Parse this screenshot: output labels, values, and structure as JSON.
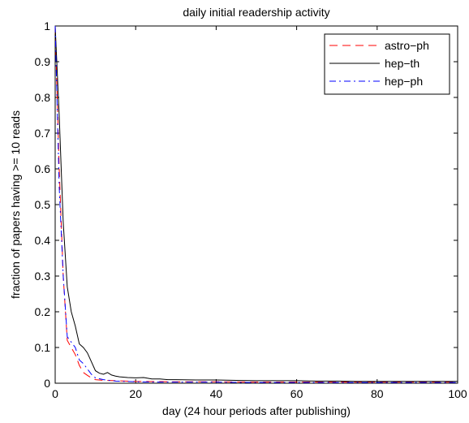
{
  "chart_data": {
    "type": "line",
    "title": "daily initial readership activity",
    "xlabel": "day (24 hour periods after publishing)",
    "ylabel": "fraction of papers having >= 10 reads",
    "xlim": [
      0,
      100
    ],
    "ylim": [
      0,
      1
    ],
    "x_ticks": [
      "0",
      "20",
      "40",
      "60",
      "80",
      "100"
    ],
    "y_ticks": [
      "0",
      "0.1",
      "0.2",
      "0.3",
      "0.4",
      "0.5",
      "0.6",
      "0.7",
      "0.8",
      "0.9",
      "1"
    ],
    "grid": false,
    "legend_position": "top-right",
    "series": [
      {
        "name": "astro−ph",
        "color": "#ff0000",
        "dash": "dashed",
        "points": [
          [
            0,
            1.0
          ],
          [
            1,
            0.6
          ],
          [
            2,
            0.3
          ],
          [
            3,
            0.12
          ],
          [
            4,
            0.1
          ],
          [
            5,
            0.08
          ],
          [
            6,
            0.05
          ],
          [
            7,
            0.03
          ],
          [
            8,
            0.022
          ],
          [
            9,
            0.015
          ],
          [
            10,
            0.01
          ],
          [
            12,
            0.008
          ],
          [
            15,
            0.007
          ],
          [
            20,
            0.005
          ],
          [
            30,
            0.004
          ],
          [
            40,
            0.004
          ],
          [
            50,
            0.003
          ],
          [
            60,
            0.003
          ],
          [
            70,
            0.003
          ],
          [
            80,
            0.003
          ],
          [
            90,
            0.003
          ],
          [
            100,
            0.003
          ]
        ]
      },
      {
        "name": "hep−th",
        "color": "#000000",
        "dash": "solid",
        "points": [
          [
            0,
            1.0
          ],
          [
            1,
            0.75
          ],
          [
            2,
            0.45
          ],
          [
            3,
            0.27
          ],
          [
            4,
            0.2
          ],
          [
            5,
            0.16
          ],
          [
            6,
            0.11
          ],
          [
            7,
            0.1
          ],
          [
            8,
            0.085
          ],
          [
            9,
            0.06
          ],
          [
            10,
            0.035
          ],
          [
            11,
            0.028
          ],
          [
            12,
            0.025
          ],
          [
            13,
            0.03
          ],
          [
            14,
            0.023
          ],
          [
            15,
            0.02
          ],
          [
            16,
            0.018
          ],
          [
            18,
            0.016
          ],
          [
            20,
            0.015
          ],
          [
            22,
            0.016
          ],
          [
            24,
            0.012
          ],
          [
            26,
            0.012
          ],
          [
            28,
            0.01
          ],
          [
            30,
            0.01
          ],
          [
            35,
            0.009
          ],
          [
            40,
            0.009
          ],
          [
            45,
            0.008
          ],
          [
            50,
            0.007
          ],
          [
            55,
            0.007
          ],
          [
            60,
            0.007
          ],
          [
            65,
            0.006
          ],
          [
            70,
            0.006
          ],
          [
            75,
            0.005
          ],
          [
            80,
            0.005
          ],
          [
            85,
            0.005
          ],
          [
            90,
            0.005
          ],
          [
            95,
            0.005
          ],
          [
            100,
            0.005
          ]
        ]
      },
      {
        "name": "hep−ph",
        "color": "#0000ff",
        "dash": "dashdot",
        "points": [
          [
            0,
            1.0
          ],
          [
            1,
            0.55
          ],
          [
            2,
            0.3
          ],
          [
            3,
            0.13
          ],
          [
            4,
            0.115
          ],
          [
            5,
            0.1
          ],
          [
            6,
            0.065
          ],
          [
            7,
            0.055
          ],
          [
            8,
            0.04
          ],
          [
            9,
            0.025
          ],
          [
            10,
            0.015
          ],
          [
            12,
            0.01
          ],
          [
            15,
            0.006
          ],
          [
            20,
            0.004
          ],
          [
            25,
            0.003
          ],
          [
            30,
            0.003
          ],
          [
            40,
            0.003
          ],
          [
            50,
            0.002
          ],
          [
            60,
            0.002
          ],
          [
            70,
            0.002
          ],
          [
            80,
            0.002
          ],
          [
            90,
            0.002
          ],
          [
            100,
            0.002
          ]
        ]
      }
    ]
  }
}
